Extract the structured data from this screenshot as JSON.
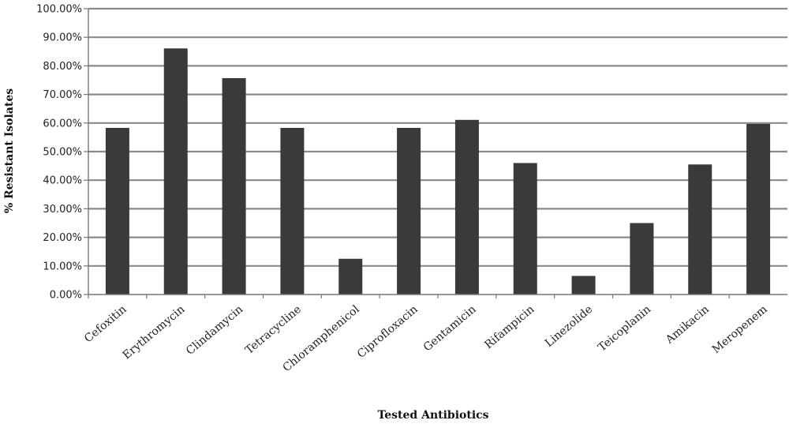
{
  "chart_data": {
    "type": "bar",
    "title": "",
    "xlabel": "Tested Antibiotics",
    "ylabel": "% Resistant Isolates",
    "ylim": [
      0,
      100
    ],
    "yticks": [
      "0.00%",
      "10.00%",
      "20.00%",
      "30.00%",
      "40.00%",
      "50.00%",
      "60.00%",
      "70.00%",
      "80.00%",
      "90.00%",
      "100.00%"
    ],
    "grid": "horizontal",
    "legend": "none",
    "categories": [
      "Cefoxitin",
      "Erythromycin",
      "Clindamycin",
      "Tetracycline",
      "Chloramphenicol",
      "Ciprofloxacin",
      "Gentamicin",
      "Rifampicin",
      "Linezolide",
      "Teicoplanin",
      "Amikacin",
      "Meropenem"
    ],
    "values": [
      58.3,
      86.1,
      75.7,
      58.3,
      12.5,
      58.3,
      61.1,
      46.0,
      6.5,
      25.0,
      45.5,
      59.7
    ],
    "colors": {
      "bar": "#3a3a3a",
      "grid": "#8a8a8a",
      "axis": "#777777"
    }
  }
}
